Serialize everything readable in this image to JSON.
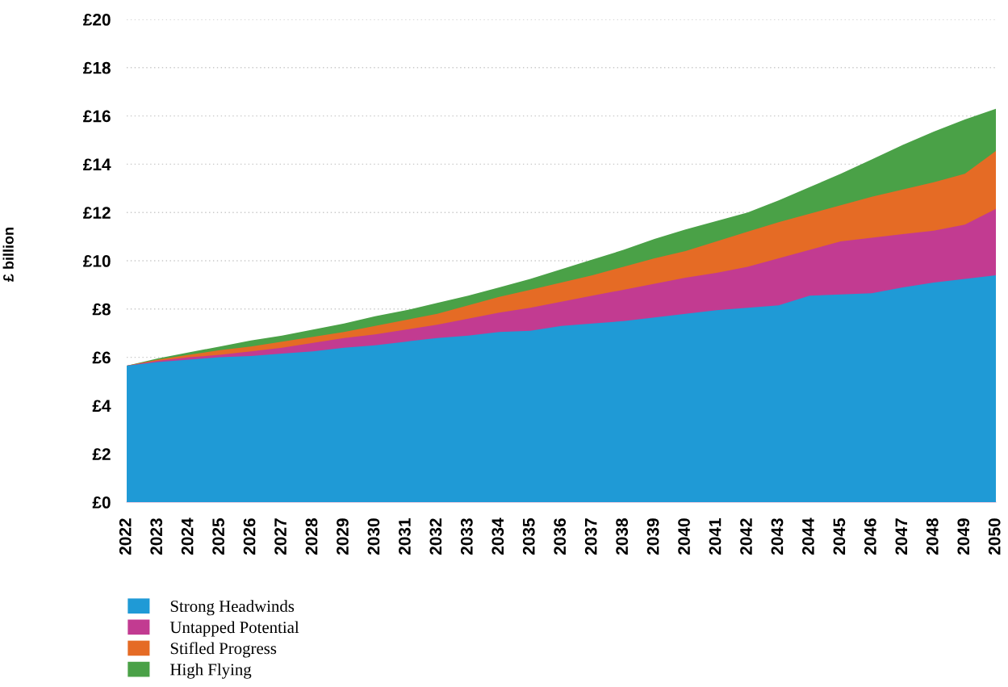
{
  "chart_data": {
    "type": "area",
    "ylabel": "£ billion",
    "categories": [
      "2022",
      "2023",
      "2024",
      "2025",
      "2026",
      "2027",
      "2028",
      "2029",
      "2030",
      "2031",
      "2032",
      "2033",
      "2034",
      "2035",
      "2036",
      "2037",
      "2038",
      "2039",
      "2040",
      "2041",
      "2042",
      "2043",
      "2044",
      "2045",
      "2046",
      "2047",
      "2048",
      "2049",
      "2050"
    ],
    "series": [
      {
        "name": "Strong Headwinds",
        "color": "#1f9ad6",
        "values": [
          5.65,
          5.8,
          5.9,
          6.0,
          6.05,
          6.15,
          6.25,
          6.4,
          6.5,
          6.65,
          6.8,
          6.9,
          7.05,
          7.1,
          7.3,
          7.4,
          7.5,
          7.65,
          7.8,
          7.95,
          8.05,
          8.15,
          8.55,
          8.6,
          8.65,
          8.9,
          9.1,
          9.25,
          9.4
        ]
      },
      {
        "name": "Untapped Potential",
        "color": "#c23b91",
        "values": [
          5.65,
          5.85,
          6.0,
          6.1,
          6.25,
          6.4,
          6.6,
          6.8,
          6.95,
          7.15,
          7.35,
          7.6,
          7.85,
          8.05,
          8.3,
          8.55,
          8.8,
          9.05,
          9.3,
          9.5,
          9.75,
          10.1,
          10.45,
          10.8,
          10.95,
          11.1,
          11.25,
          11.5,
          12.15
        ]
      },
      {
        "name": "Stifled Progress",
        "color": "#e56b25",
        "values": [
          5.65,
          5.9,
          6.1,
          6.3,
          6.45,
          6.65,
          6.85,
          7.05,
          7.3,
          7.55,
          7.8,
          8.15,
          8.5,
          8.8,
          9.1,
          9.4,
          9.75,
          10.1,
          10.4,
          10.8,
          11.2,
          11.6,
          11.95,
          12.3,
          12.65,
          12.95,
          13.25,
          13.6,
          14.55
        ]
      },
      {
        "name": "High Flying",
        "color": "#4aa147",
        "values": [
          5.65,
          5.95,
          6.2,
          6.45,
          6.7,
          6.9,
          7.15,
          7.4,
          7.7,
          7.95,
          8.25,
          8.55,
          8.9,
          9.25,
          9.65,
          10.05,
          10.45,
          10.9,
          11.3,
          11.65,
          12.0,
          12.5,
          13.05,
          13.6,
          14.2,
          14.8,
          15.35,
          15.85,
          16.3
        ]
      }
    ],
    "ylim": [
      0,
      20
    ],
    "yticks": [
      {
        "value": 0,
        "label": "£0"
      },
      {
        "value": 2,
        "label": "£2"
      },
      {
        "value": 4,
        "label": "£4"
      },
      {
        "value": 6,
        "label": "£6"
      },
      {
        "value": 8,
        "label": "£8"
      },
      {
        "value": 10,
        "label": "£10"
      },
      {
        "value": 12,
        "label": "£12"
      },
      {
        "value": 14,
        "label": "£14"
      },
      {
        "value": 16,
        "label": "£16"
      },
      {
        "value": 18,
        "label": "£18"
      },
      {
        "value": 20,
        "label": "£20"
      }
    ],
    "grid": "y",
    "legend": "bottom left"
  }
}
